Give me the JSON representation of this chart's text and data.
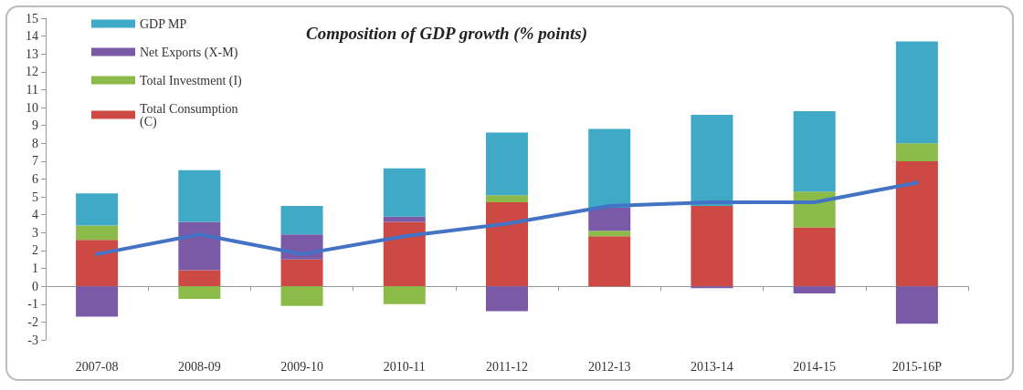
{
  "chart_data": {
    "type": "bar",
    "title": "Composition of GDP growth (% points)",
    "categories": [
      "2007-08",
      "2008-09",
      "2009-10",
      "2010-11",
      "2011-12",
      "2012-13",
      "2013-14",
      "2014-15",
      "2015-16P"
    ],
    "stacked": true,
    "series": [
      {
        "name": "Total Consumption (C)",
        "color": "#cc4a43",
        "values": [
          2.6,
          0.9,
          1.5,
          3.6,
          4.7,
          2.8,
          4.5,
          3.3,
          7.0
        ]
      },
      {
        "name": "Total Investment (I)",
        "color": "#8cbb4a",
        "values": [
          0.8,
          -0.7,
          -1.1,
          -1.0,
          0.4,
          0.3,
          null,
          2.0,
          1.0
        ]
      },
      {
        "name": "Net Exports (X-M)",
        "color": "#7a5aa6",
        "values": [
          -1.7,
          2.7,
          1.4,
          0.3,
          -1.4,
          1.3,
          -0.1,
          -0.4,
          -2.1
        ]
      },
      {
        "name": "GDP MP",
        "color": "#3fa9c6",
        "values": [
          1.8,
          2.9,
          1.6,
          2.7,
          3.5,
          4.4,
          5.1,
          4.5,
          5.7
        ]
      },
      {
        "type": "line",
        "color": "#4472c4",
        "values": [
          1.8,
          2.9,
          1.8,
          2.8,
          3.5,
          4.5,
          4.7,
          4.7,
          5.8
        ]
      }
    ],
    "ylim": [
      -3,
      15
    ],
    "yticks": [
      -3,
      -2,
      -1,
      0,
      1,
      2,
      3,
      4,
      5,
      6,
      7,
      8,
      9,
      10,
      11,
      12,
      13,
      14,
      15
    ],
    "legend": "top left",
    "marker": "none",
    "line_style": "solid"
  }
}
